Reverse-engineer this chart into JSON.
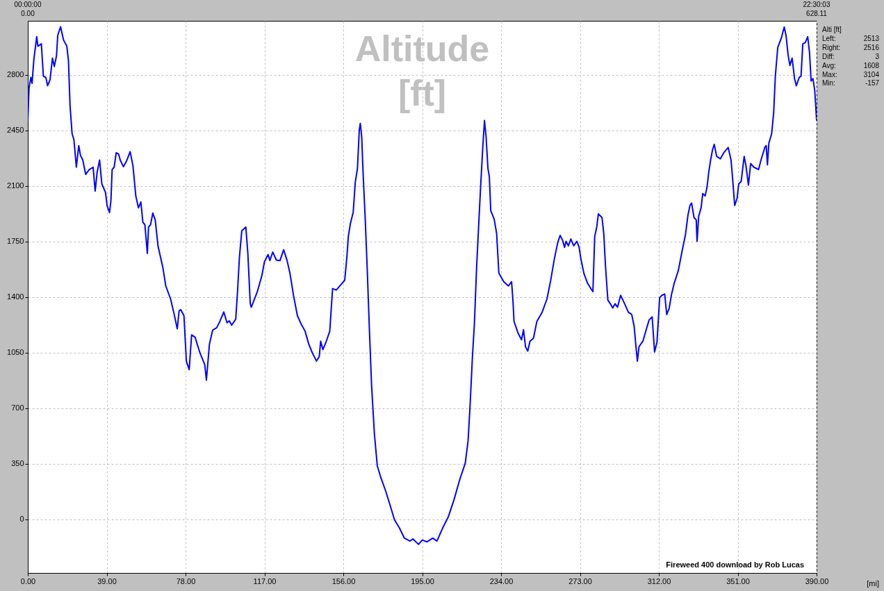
{
  "chart_data": {
    "type": "line",
    "title": "Altitude\n[ft]",
    "x": [
      0,
      0.6,
      1.5,
      2.1,
      3.0,
      4.4,
      5.0,
      6.7,
      7.7,
      8.9,
      9.8,
      11.0,
      12.2,
      13.1,
      14.2,
      14.8,
      16.2,
      17.7,
      19.3,
      20.1,
      20.9,
      21.9,
      22.8,
      24.0,
      25.2,
      26.0,
      27.2,
      28.6,
      30.4,
      32.3,
      33.3,
      34.3,
      35.5,
      36.6,
      38.4,
      39.2,
      40.4,
      41.1,
      41.7,
      42.7,
      43.7,
      44.9,
      45.7,
      47.3,
      48.8,
      50.6,
      52.0,
      53.4,
      54.7,
      55.9,
      56.9,
      57.9,
      59.1,
      59.7,
      60.7,
      61.8,
      63.0,
      64.4,
      66.8,
      68.2,
      70.6,
      72.4,
      73.9,
      74.8,
      75.6,
      77.2,
      78.4,
      79.8,
      81.0,
      82.7,
      85.1,
      87.5,
      88.3,
      89.8,
      91.4,
      93.4,
      94.9,
      96.9,
      98.5,
      99.6,
      100.8,
      102.8,
      103.7,
      104.6,
      105.8,
      107.8,
      108.8,
      110.0,
      110.5,
      113.5,
      115.8,
      117.0,
      118.8,
      119.7,
      121.1,
      122.9,
      124.7,
      126.5,
      128.2,
      129.6,
      131.4,
      133.3,
      135.2,
      137.1,
      138.9,
      140.6,
      142.7,
      144.1,
      144.8,
      145.9,
      147.6,
      149.3,
      150.7,
      152.5,
      154.9,
      156.7,
      157.8,
      158.5,
      159.5,
      160.9,
      161.9,
      163.0,
      163.9,
      164.4,
      165.1,
      165.8,
      166.9,
      167.9,
      168.9,
      170.0,
      171.4,
      172.8,
      174.5,
      177.0,
      179.6,
      181.3,
      183.8,
      186.2,
      189.0,
      190.4,
      193.2,
      195.0,
      197.4,
      200.2,
      202.3,
      205.1,
      207.9,
      210.7,
      213.5,
      216.3,
      217.7,
      218.8,
      219.8,
      220.8,
      221.9,
      223.0,
      224.0,
      225.0,
      225.8,
      226.6,
      227.5,
      228.2,
      228.9,
      230.6,
      231.8,
      232.9,
      235.3,
      237.6,
      239.2,
      239.9,
      240.4,
      242.3,
      244.1,
      245.1,
      246.1,
      247.2,
      248.3,
      250.0,
      251.7,
      254.2,
      256.7,
      258.5,
      260.2,
      262.0,
      263.2,
      264.4,
      265.4,
      266.1,
      267.3,
      268.5,
      269.9,
      271.5,
      272.6,
      273.5,
      275.0,
      276.8,
      278.6,
      279.4,
      280.3,
      281.3,
      282.1,
      283.9,
      284.8,
      285.6,
      286.8,
      288.0,
      289.2,
      290.4,
      291.6,
      293.1,
      295.1,
      296.9,
      298.6,
      299.8,
      300.7,
      301.4,
      302.2,
      304.2,
      305.7,
      307.2,
      308.7,
      309.9,
      311.1,
      312.4,
      313.5,
      314.9,
      315.9,
      317.1,
      318.3,
      319.6,
      321.7,
      323.5,
      325.2,
      326.4,
      327.4,
      328.2,
      329.4,
      330.5,
      330.9,
      331.7,
      332.9,
      333.7,
      334.9,
      335.8,
      336.7,
      337.6,
      338.5,
      339.4,
      340.6,
      342.4,
      344.1,
      346.3,
      347.7,
      348.5,
      349.5,
      350.7,
      351.5,
      352.7,
      354.2,
      355.1,
      356.3,
      357.4,
      359.0,
      361.3,
      362.5,
      364.5,
      365.1,
      365.7,
      366.4,
      367.8,
      368.8,
      369.6,
      370.8,
      372.6,
      374.0,
      374.9,
      375.9,
      376.8,
      377.9,
      379.1,
      380.0,
      381.4,
      382.3,
      383.2,
      384.4,
      385.6,
      386.5,
      387.3,
      388.2,
      389.1,
      390.0
    ],
    "series": [
      {
        "color": "#0000ff",
        "values": [
          2513,
          2717,
          2785,
          2747,
          2898,
          3041,
          2981,
          2996,
          2792,
          2785,
          2732,
          2770,
          2906,
          2853,
          2921,
          3049,
          3104,
          3019,
          2981,
          2891,
          2604,
          2430,
          2393,
          2219,
          2355,
          2295,
          2264,
          2174,
          2204,
          2219,
          2068,
          2189,
          2264,
          2114,
          2061,
          1978,
          1933,
          2008,
          2204,
          2219,
          2310,
          2302,
          2264,
          2222,
          2257,
          2317,
          2227,
          2038,
          1963,
          2000,
          1872,
          1857,
          1676,
          1842,
          1857,
          1930,
          1887,
          1721,
          1586,
          1472,
          1389,
          1291,
          1201,
          1314,
          1322,
          1284,
          997,
          944,
          1163,
          1148,
          1050,
          975,
          877,
          1103,
          1193,
          1208,
          1246,
          1307,
          1239,
          1251,
          1224,
          1261,
          1435,
          1646,
          1819,
          1842,
          1676,
          1359,
          1337,
          1435,
          1540,
          1623,
          1669,
          1631,
          1684,
          1634,
          1631,
          1699,
          1631,
          1552,
          1409,
          1284,
          1230,
          1186,
          1105,
          1052,
          998,
          1025,
          1123,
          1070,
          1123,
          1186,
          1454,
          1445,
          1480,
          1507,
          1659,
          1784,
          1864,
          1936,
          2123,
          2212,
          2454,
          2495,
          2409,
          2177,
          1873,
          1552,
          1195,
          838,
          534,
          338,
          266,
          177,
          70,
          -2,
          -55,
          -118,
          -136,
          -123,
          -157,
          -130,
          -141,
          -118,
          -136,
          -55,
          16,
          123,
          248,
          355,
          498,
          748,
          1016,
          1230,
          1588,
          1873,
          2123,
          2355,
          2513,
          2409,
          2212,
          2159,
          1945,
          1891,
          1802,
          1552,
          1498,
          1471,
          1498,
          1373,
          1248,
          1177,
          1132,
          1195,
          1087,
          1061,
          1123,
          1141,
          1248,
          1302,
          1389,
          1503,
          1631,
          1744,
          1789,
          1759,
          1714,
          1752,
          1724,
          1767,
          1724,
          1752,
          1714,
          1638,
          1548,
          1487,
          1450,
          1435,
          1782,
          1842,
          1925,
          1902,
          1797,
          1601,
          1382,
          1359,
          1332,
          1359,
          1337,
          1412,
          1359,
          1306,
          1291,
          1216,
          1088,
          997,
          1088,
          1125,
          1193,
          1257,
          1276,
          1055,
          1118,
          1397,
          1412,
          1420,
          1291,
          1329,
          1420,
          1487,
          1571,
          1691,
          1797,
          1917,
          1978,
          1993,
          1902,
          1887,
          1752,
          1910,
          1963,
          2053,
          2038,
          2091,
          2189,
          2264,
          2325,
          2363,
          2287,
          2272,
          2310,
          2343,
          2264,
          2144,
          1978,
          2023,
          2114,
          2129,
          2287,
          2227,
          2106,
          2242,
          2219,
          2204,
          2264,
          2347,
          2355,
          2234,
          2370,
          2430,
          2566,
          2792,
          2973,
          3034,
          3102,
          3049,
          2928,
          2860,
          2906,
          2777,
          2732,
          2785,
          2792,
          2996,
          3004,
          3041,
          2943,
          2762,
          2777,
          2702,
          2516
        ]
      }
    ],
    "xlim": [
      0,
      390
    ],
    "ylim": [
      -337,
      3141
    ],
    "xticks": [
      {
        "value": 0,
        "label": "0.00"
      },
      {
        "value": 39,
        "label": "39.00"
      },
      {
        "value": 78,
        "label": "78.00"
      },
      {
        "value": 117,
        "label": "117.00"
      },
      {
        "value": 156,
        "label": "156.00"
      },
      {
        "value": 195,
        "label": "195.00"
      },
      {
        "value": 234,
        "label": "234.00"
      },
      {
        "value": 273,
        "label": "273.00"
      },
      {
        "value": 312,
        "label": "312.00"
      },
      {
        "value": 351,
        "label": "351.00"
      },
      {
        "value": 390,
        "label": "390.00"
      }
    ],
    "yticks": [
      0,
      350,
      700,
      1050,
      1400,
      1750,
      2100,
      2450,
      2800
    ],
    "grid": true,
    "annotations": [
      "00:00:00\n0.00",
      "22:30:03\n628.11",
      "Alti [ft]",
      "Left: 2513",
      "Right: 2516",
      "Diff: 3",
      "Avg: 1608",
      "Max: 3104",
      "Min: -157",
      "Fireweed 400 download by Rob Lucas",
      "[mi]"
    ]
  }
}
